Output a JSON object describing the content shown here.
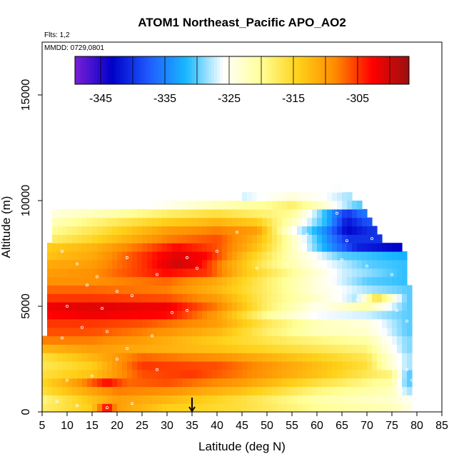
{
  "chart_data": {
    "type": "heatmap",
    "title": "ATOM1 Northeast_Pacific APO_AO2",
    "annotations": [
      "Flts: 1,2",
      "MMDD: 0729,0801"
    ],
    "xlabel": "Latitude (deg N)",
    "ylabel": "Altitude (m)",
    "xlim": [
      5,
      85
    ],
    "ylim": [
      0,
      17500
    ],
    "x_ticks": [
      5,
      10,
      15,
      20,
      25,
      30,
      35,
      40,
      45,
      50,
      55,
      60,
      65,
      70,
      75,
      80,
      85
    ],
    "y_ticks": [
      0,
      5000,
      10000,
      15000
    ],
    "colorbar": {
      "range": [
        -349,
        -297
      ],
      "tick_values": [
        -345,
        -335,
        -325,
        -315,
        -305
      ],
      "tick_labels": [
        "-345",
        "-335",
        "-325",
        "-315",
        "-305"
      ],
      "colors": [
        "#7a1fd6",
        "#0000c8",
        "#1f5bff",
        "#18b8ff",
        "#ffffff",
        "#ffff99",
        "#ffd21a",
        "#ff8c00",
        "#ff0000",
        "#9a1010"
      ]
    },
    "marker_latitude": 35,
    "cell_width_deg": 1,
    "cell_height_m": 400,
    "bands": [
      {
        "alt": 200,
        "lat_min": 5,
        "lat_max": 78,
        "values": [
          [
            5,
            -318
          ],
          [
            15,
            -314
          ],
          [
            18,
            -302
          ],
          [
            20,
            -310
          ],
          [
            30,
            -314
          ],
          [
            45,
            -316
          ],
          [
            60,
            -320
          ],
          [
            75,
            -322
          ],
          [
            78,
            -324
          ]
        ]
      },
      {
        "alt": 600,
        "lat_min": 5,
        "lat_max": 78,
        "values": [
          [
            5,
            -319
          ],
          [
            20,
            -310
          ],
          [
            30,
            -312
          ],
          [
            45,
            -316
          ],
          [
            60,
            -321
          ],
          [
            75,
            -323
          ],
          [
            78,
            -325
          ]
        ]
      },
      {
        "alt": 1000,
        "lat_min": 5,
        "lat_max": 78,
        "values": [
          [
            5,
            -316
          ],
          [
            12,
            -312
          ],
          [
            20,
            -308
          ],
          [
            30,
            -309
          ],
          [
            45,
            -313
          ],
          [
            60,
            -319
          ],
          [
            75,
            -322
          ],
          [
            78,
            -328
          ]
        ]
      },
      {
        "alt": 1400,
        "lat_min": 5,
        "lat_max": 78,
        "values": [
          [
            5,
            -315
          ],
          [
            12,
            -310
          ],
          [
            18,
            -303
          ],
          [
            22,
            -307
          ],
          [
            30,
            -306
          ],
          [
            45,
            -310
          ],
          [
            60,
            -316
          ],
          [
            75,
            -321
          ],
          [
            78,
            -330
          ]
        ]
      },
      {
        "alt": 1800,
        "lat_min": 5,
        "lat_max": 78,
        "values": [
          [
            5,
            -316
          ],
          [
            15,
            -313
          ],
          [
            25,
            -306
          ],
          [
            35,
            -305
          ],
          [
            45,
            -308
          ],
          [
            60,
            -313
          ],
          [
            75,
            -319
          ],
          [
            78,
            -330
          ]
        ]
      },
      {
        "alt": 2200,
        "lat_min": 5,
        "lat_max": 78,
        "values": [
          [
            5,
            -317
          ],
          [
            15,
            -314
          ],
          [
            25,
            -305
          ],
          [
            40,
            -306
          ],
          [
            55,
            -311
          ],
          [
            70,
            -316
          ],
          [
            78,
            -328
          ]
        ]
      },
      {
        "alt": 2600,
        "lat_min": 5,
        "lat_max": 78,
        "values": [
          [
            5,
            -316
          ],
          [
            15,
            -312
          ],
          [
            25,
            -307
          ],
          [
            40,
            -309
          ],
          [
            55,
            -313
          ],
          [
            70,
            -317
          ],
          [
            78,
            -328
          ]
        ]
      },
      {
        "alt": 3000,
        "lat_min": 5,
        "lat_max": 78,
        "values": [
          [
            5,
            -312
          ],
          [
            15,
            -310
          ],
          [
            25,
            -311
          ],
          [
            40,
            -313
          ],
          [
            55,
            -316
          ],
          [
            70,
            -319
          ],
          [
            78,
            -329
          ]
        ]
      },
      {
        "alt": 3400,
        "lat_min": 5,
        "lat_max": 78,
        "values": [
          [
            5,
            -308
          ],
          [
            15,
            -308
          ],
          [
            25,
            -310
          ],
          [
            40,
            -314
          ],
          [
            55,
            -318
          ],
          [
            70,
            -321
          ],
          [
            78,
            -329
          ]
        ]
      },
      {
        "alt": 3800,
        "lat_min": 6,
        "lat_max": 78,
        "values": [
          [
            6,
            -306
          ],
          [
            15,
            -306
          ],
          [
            25,
            -308
          ],
          [
            40,
            -312
          ],
          [
            50,
            -318
          ],
          [
            60,
            -322
          ],
          [
            70,
            -323
          ],
          [
            78,
            -330
          ]
        ]
      },
      {
        "alt": 4200,
        "lat_min": 6,
        "lat_max": 78,
        "values": [
          [
            6,
            -305
          ],
          [
            15,
            -305
          ],
          [
            25,
            -306
          ],
          [
            40,
            -310
          ],
          [
            50,
            -317
          ],
          [
            60,
            -322
          ],
          [
            70,
            -324
          ],
          [
            78,
            -330
          ]
        ]
      },
      {
        "alt": 4600,
        "lat_min": 6,
        "lat_max": 78,
        "values": [
          [
            6,
            -303
          ],
          [
            15,
            -302
          ],
          [
            30,
            -303
          ],
          [
            40,
            -310
          ],
          [
            50,
            -320
          ],
          [
            60,
            -326
          ],
          [
            70,
            -327
          ],
          [
            78,
            -330
          ]
        ]
      },
      {
        "alt": 5000,
        "lat_min": 6,
        "lat_max": 78,
        "values": [
          [
            6,
            -302
          ],
          [
            15,
            -301
          ],
          [
            30,
            -302
          ],
          [
            40,
            -308
          ],
          [
            50,
            -318
          ],
          [
            60,
            -325
          ],
          [
            70,
            -321
          ],
          [
            78,
            -330
          ]
        ]
      },
      {
        "alt": 5400,
        "lat_min": 6,
        "lat_max": 78,
        "values": [
          [
            6,
            -305
          ],
          [
            15,
            -305
          ],
          [
            30,
            -306
          ],
          [
            40,
            -310
          ],
          [
            50,
            -318
          ],
          [
            60,
            -323
          ],
          [
            68,
            -328
          ],
          [
            72,
            -316
          ],
          [
            78,
            -330
          ]
        ]
      },
      {
        "alt": 5800,
        "lat_min": 6,
        "lat_max": 78,
        "values": [
          [
            6,
            -307
          ],
          [
            15,
            -307
          ],
          [
            30,
            -308
          ],
          [
            40,
            -312
          ],
          [
            50,
            -318
          ],
          [
            60,
            -324
          ],
          [
            70,
            -328
          ],
          [
            78,
            -330
          ]
        ]
      },
      {
        "alt": 6200,
        "lat_min": 6,
        "lat_max": 77,
        "values": [
          [
            6,
            -309
          ],
          [
            15,
            -309
          ],
          [
            30,
            -307
          ],
          [
            40,
            -311
          ],
          [
            50,
            -318
          ],
          [
            60,
            -324
          ],
          [
            70,
            -330
          ],
          [
            77,
            -331
          ]
        ]
      },
      {
        "alt": 6600,
        "lat_min": 6,
        "lat_max": 77,
        "values": [
          [
            6,
            -310
          ],
          [
            15,
            -309
          ],
          [
            30,
            -303
          ],
          [
            38,
            -305
          ],
          [
            45,
            -313
          ],
          [
            55,
            -320
          ],
          [
            65,
            -327
          ],
          [
            77,
            -331
          ]
        ]
      },
      {
        "alt": 7000,
        "lat_min": 6,
        "lat_max": 77,
        "values": [
          [
            6,
            -311
          ],
          [
            15,
            -310
          ],
          [
            25,
            -305
          ],
          [
            32,
            -300
          ],
          [
            36,
            -302
          ],
          [
            42,
            -310
          ],
          [
            50,
            -318
          ],
          [
            60,
            -325
          ],
          [
            70,
            -330
          ],
          [
            77,
            -331
          ]
        ]
      },
      {
        "alt": 7400,
        "lat_min": 6,
        "lat_max": 77,
        "values": [
          [
            6,
            -313
          ],
          [
            15,
            -311
          ],
          [
            25,
            -305
          ],
          [
            32,
            -301
          ],
          [
            38,
            -303
          ],
          [
            45,
            -312
          ],
          [
            55,
            -322
          ],
          [
            65,
            -330
          ],
          [
            77,
            -332
          ]
        ]
      },
      {
        "alt": 7800,
        "lat_min": 6,
        "lat_max": 76,
        "values": [
          [
            6,
            -314
          ],
          [
            15,
            -312
          ],
          [
            25,
            -307
          ],
          [
            32,
            -303
          ],
          [
            40,
            -306
          ],
          [
            48,
            -313
          ],
          [
            55,
            -322
          ],
          [
            62,
            -333
          ],
          [
            68,
            -341
          ],
          [
            76,
            -343
          ]
        ]
      },
      {
        "alt": 8200,
        "lat_min": 7,
        "lat_max": 72,
        "values": [
          [
            7,
            -318
          ],
          [
            15,
            -315
          ],
          [
            30,
            -308
          ],
          [
            40,
            -306
          ],
          [
            48,
            -312
          ],
          [
            55,
            -322
          ],
          [
            62,
            -334
          ],
          [
            66,
            -340
          ],
          [
            72,
            -340
          ]
        ]
      },
      {
        "alt": 8600,
        "lat_min": 7,
        "lat_max": 71,
        "values": [
          [
            7,
            -320
          ],
          [
            15,
            -317
          ],
          [
            30,
            -310
          ],
          [
            40,
            -308
          ],
          [
            48,
            -310
          ],
          [
            55,
            -325
          ],
          [
            62,
            -335
          ],
          [
            66,
            -343
          ],
          [
            71,
            -340
          ]
        ]
      },
      {
        "alt": 9000,
        "lat_min": 7,
        "lat_max": 70,
        "values": [
          [
            7,
            -322
          ],
          [
            15,
            -319
          ],
          [
            30,
            -314
          ],
          [
            40,
            -312
          ],
          [
            48,
            -314
          ],
          [
            55,
            -322
          ],
          [
            62,
            -332
          ],
          [
            66,
            -342
          ],
          [
            70,
            -338
          ]
        ]
      },
      {
        "alt": 9400,
        "lat_min": 7,
        "lat_max": 69,
        "values": [
          [
            7,
            -324
          ],
          [
            20,
            -321
          ],
          [
            30,
            -318
          ],
          [
            40,
            -316
          ],
          [
            48,
            -318
          ],
          [
            55,
            -320
          ],
          [
            60,
            -328
          ],
          [
            66,
            -340
          ],
          [
            69,
            -336
          ]
        ]
      },
      {
        "alt": 9800,
        "lat_min": 26,
        "lat_max": 68,
        "values": [
          [
            26,
            -326
          ],
          [
            40,
            -322
          ],
          [
            50,
            -320
          ],
          [
            55,
            -318
          ],
          [
            60,
            -322
          ],
          [
            66,
            -328
          ],
          [
            68,
            -330
          ]
        ]
      },
      {
        "alt": 10200,
        "lat_min": 45,
        "lat_max": 66,
        "values": [
          [
            45,
            -327
          ],
          [
            55,
            -324
          ],
          [
            62,
            -326
          ],
          [
            66,
            -328
          ]
        ]
      },
      {
        "alt": 10600,
        "lat_min": 63,
        "lat_max": 64,
        "values": [
          [
            63,
            -326
          ],
          [
            64,
            -326
          ]
        ]
      }
    ],
    "sample_points": [
      [
        8,
        500
      ],
      [
        12,
        300
      ],
      [
        18,
        200
      ],
      [
        23,
        400
      ],
      [
        10,
        1500
      ],
      [
        15,
        1700
      ],
      [
        20,
        2500
      ],
      [
        28,
        2000
      ],
      [
        9,
        3500
      ],
      [
        13,
        4000
      ],
      [
        18,
        3800
      ],
      [
        22,
        3000
      ],
      [
        27,
        3600
      ],
      [
        10,
        5000
      ],
      [
        17,
        4900
      ],
      [
        23,
        5500
      ],
      [
        31,
        4700
      ],
      [
        34,
        4800
      ],
      [
        14,
        6000
      ],
      [
        20,
        5700
      ],
      [
        28,
        6500
      ],
      [
        36,
        6800
      ],
      [
        16,
        6400
      ],
      [
        12,
        7000
      ],
      [
        9,
        7600
      ],
      [
        22,
        7300
      ],
      [
        34,
        7300
      ],
      [
        40,
        7600
      ],
      [
        54,
        7000
      ],
      [
        65,
        7200
      ],
      [
        70,
        6900
      ],
      [
        75,
        6500
      ],
      [
        68,
        5300
      ],
      [
        72,
        5000
      ],
      [
        76,
        4800
      ],
      [
        78,
        4300
      ],
      [
        74,
        3800
      ],
      [
        71,
        8200
      ],
      [
        66,
        8100
      ],
      [
        64,
        9400
      ],
      [
        58,
        8400
      ],
      [
        44,
        8500
      ],
      [
        48,
        6800
      ],
      [
        78,
        2000
      ],
      [
        79,
        1500
      ],
      [
        77,
        1000
      ]
    ]
  }
}
